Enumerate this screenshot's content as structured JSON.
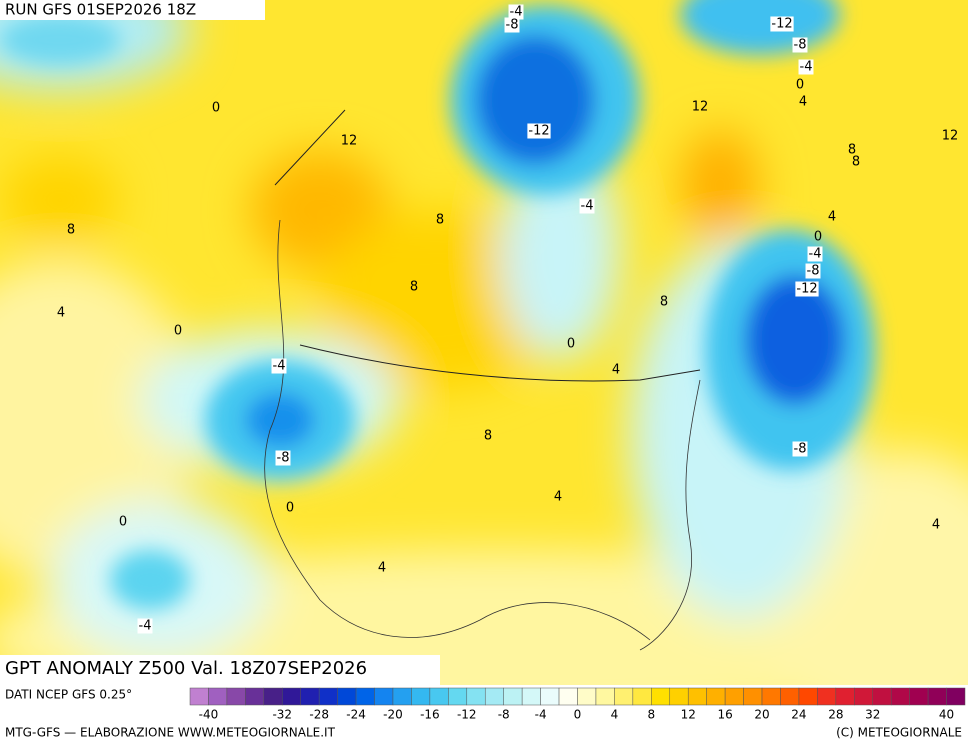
{
  "header": {
    "run": "RUN GFS 01SEP2026 18Z"
  },
  "map": {
    "title": "GPT ANOMALY Z500 Val. 18Z07SEP2026",
    "contour_labels": [
      -4,
      -8,
      -12,
      -8,
      -4,
      0,
      4,
      0,
      12,
      12,
      -12,
      12,
      8,
      8,
      8,
      8,
      -4,
      4,
      0,
      -4,
      -8,
      -12,
      8,
      8,
      4,
      0,
      0,
      -4,
      4,
      8,
      -8,
      -8,
      4,
      0,
      0,
      4,
      4,
      -4
    ]
  },
  "legend": {
    "source": "DATI NCEP GFS 0.25°",
    "ticks": [
      -40,
      -32,
      -28,
      -24,
      -20,
      -16,
      -12,
      -8,
      -4,
      0,
      4,
      8,
      12,
      16,
      20,
      24,
      28,
      32,
      40
    ],
    "colors": [
      "#c080d0",
      "#a060c0",
      "#8848a8",
      "#683098",
      "#482088",
      "#301898",
      "#2020b0",
      "#1030c8",
      "#0048d8",
      "#0064e8",
      "#1484f0",
      "#24a0f0",
      "#34b8f0",
      "#48c8f0",
      "#64d8f0",
      "#84e2f2",
      "#a4eaf4",
      "#bcf2f4",
      "#d4f8f8",
      "#eafcfc",
      "#fffff0",
      "#fffcc8",
      "#fff8a0",
      "#fff070",
      "#ffe840",
      "#ffe000",
      "#ffd000",
      "#ffc000",
      "#ffb000",
      "#ffa000",
      "#ff9000",
      "#ff7800",
      "#ff6000",
      "#ff4800",
      "#f03020",
      "#e02030",
      "#d01838",
      "#c01040",
      "#b00848",
      "#a00050",
      "#900058",
      "#800060"
    ]
  },
  "footer": {
    "credit": "MTG-GFS — ELABORAZIONE WWW.METEOGIORNALE.IT",
    "copyright": "(C) METEOGIORNALE"
  }
}
